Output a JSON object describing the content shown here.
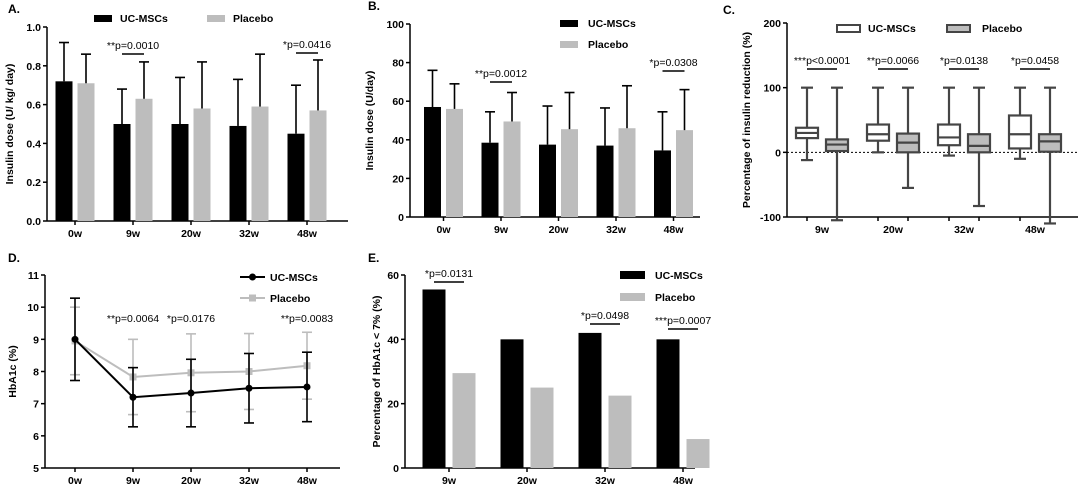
{
  "colors": {
    "uc": "#000000",
    "placebo": "#bdbdbd",
    "box_stroke": "#454545"
  },
  "chart_data": [
    {
      "panel": "A.",
      "type": "bar",
      "ylabel": "Insulin dose (U/ kg/ day)",
      "ylim": [
        0,
        1
      ],
      "yticks": [
        "0.0",
        "0.2",
        "0.4",
        "0.6",
        "0.8",
        "1.0"
      ],
      "categories": [
        "0w",
        "9w",
        "20w",
        "32w",
        "48w"
      ],
      "legend": "top",
      "series": [
        {
          "name": "UC-MSCs",
          "values": [
            0.72,
            0.5,
            0.5,
            0.49,
            0.45
          ],
          "error": [
            0.2,
            0.18,
            0.24,
            0.24,
            0.25
          ]
        },
        {
          "name": "Placebo",
          "values": [
            0.71,
            0.63,
            0.58,
            0.59,
            0.57
          ],
          "error": [
            0.15,
            0.19,
            0.24,
            0.27,
            0.26
          ]
        }
      ],
      "annotations": [
        {
          "category": "9w",
          "text": "**p=0.0010"
        },
        {
          "category": "48w",
          "text": "*p=0.0416"
        }
      ]
    },
    {
      "panel": "B.",
      "type": "bar",
      "ylabel": "Insulin dose (U/day)",
      "ylim": [
        0,
        100
      ],
      "yticks": [
        "0",
        "20",
        "40",
        "60",
        "80",
        "100"
      ],
      "categories": [
        "0w",
        "9w",
        "20w",
        "32w",
        "48w"
      ],
      "legend": "top-right",
      "series": [
        {
          "name": "UC-MSCs",
          "values": [
            57,
            38.5,
            37.5,
            37,
            34.5
          ],
          "error": [
            19,
            16,
            20,
            19.5,
            20
          ]
        },
        {
          "name": "Placebo",
          "values": [
            56,
            49.5,
            45.5,
            46,
            45
          ],
          "error": [
            13,
            15,
            19,
            22,
            21
          ]
        }
      ],
      "annotations": [
        {
          "category": "9w",
          "text": "**p=0.0012"
        },
        {
          "category": "48w",
          "text": "*p=0.0308"
        }
      ]
    },
    {
      "panel": "C.",
      "type": "box",
      "ylabel": "Percentage of insulin reduction (%)",
      "ylim": [
        -100,
        200
      ],
      "yticks": [
        "-100",
        "0",
        "100",
        "200"
      ],
      "categories": [
        "9w",
        "20w",
        "32w",
        "48w"
      ],
      "legend": "top",
      "reference_line": 0,
      "series": [
        {
          "name": "UC-MSCs",
          "boxes": [
            {
              "min": -12,
              "q1": 22,
              "median": 30,
              "q3": 38,
              "max": 100
            },
            {
              "min": 0,
              "q1": 18,
              "median": 28,
              "q3": 43,
              "max": 100
            },
            {
              "min": -5,
              "q1": 11,
              "median": 23,
              "q3": 43,
              "max": 100
            },
            {
              "min": -10,
              "q1": 6,
              "median": 28,
              "q3": 57,
              "max": 100
            }
          ]
        },
        {
          "name": "Placebo",
          "boxes": [
            {
              "min": -105,
              "q1": 2,
              "median": 12,
              "q3": 20,
              "max": 100
            },
            {
              "min": -55,
              "q1": 0,
              "median": 15,
              "q3": 29,
              "max": 100
            },
            {
              "min": -83,
              "q1": 0,
              "median": 10,
              "q3": 28,
              "max": 100
            },
            {
              "min": -110,
              "q1": 1,
              "median": 17,
              "q3": 28,
              "max": 100
            }
          ]
        }
      ],
      "annotations": [
        {
          "category": "9w",
          "text": "***p<0.0001"
        },
        {
          "category": "20w",
          "text": "**p=0.0066"
        },
        {
          "category": "32w",
          "text": "*p=0.0138"
        },
        {
          "category": "48w",
          "text": "*p=0.0458"
        }
      ]
    },
    {
      "panel": "D.",
      "type": "line",
      "ylabel": "HbA1c (%)",
      "ylim": [
        5,
        11
      ],
      "yticks": [
        "5",
        "6",
        "7",
        "8",
        "9",
        "10",
        "11"
      ],
      "categories": [
        "0w",
        "9w",
        "20w",
        "32w",
        "48w"
      ],
      "legend": "top-right",
      "series": [
        {
          "name": "UC-MSCs",
          "values": [
            9.0,
            7.2,
            7.33,
            7.48,
            7.52
          ],
          "error": [
            1.28,
            0.92,
            1.05,
            1.08,
            1.08
          ]
        },
        {
          "name": "Placebo",
          "values": [
            8.95,
            7.83,
            7.96,
            8.0,
            8.18
          ],
          "error": [
            1.05,
            1.17,
            1.21,
            1.18,
            1.04
          ]
        }
      ],
      "annotations": [
        {
          "category": "9w",
          "text": "**p=0.0064"
        },
        {
          "category": "20w",
          "text": "*p=0.0176"
        },
        {
          "category": "48w",
          "text": "**p=0.0083"
        }
      ]
    },
    {
      "panel": "E.",
      "type": "bar",
      "ylabel": "Percentage of HbA1c < 7% (%)",
      "ylim": [
        0,
        60
      ],
      "yticks": [
        "0",
        "20",
        "40",
        "60"
      ],
      "categories": [
        "9w",
        "20w",
        "32w",
        "48w"
      ],
      "legend": "top-right",
      "series": [
        {
          "name": "UC-MSCs",
          "values": [
            55.5,
            40,
            42,
            40
          ]
        },
        {
          "name": "Placebo",
          "values": [
            29.5,
            25,
            22.5,
            9
          ]
        }
      ],
      "annotations": [
        {
          "category": "9w",
          "text": "*p=0.0131"
        },
        {
          "category": "32w",
          "text": "*p=0.0498"
        },
        {
          "category": "48w",
          "text": "***p=0.0007"
        }
      ]
    }
  ]
}
